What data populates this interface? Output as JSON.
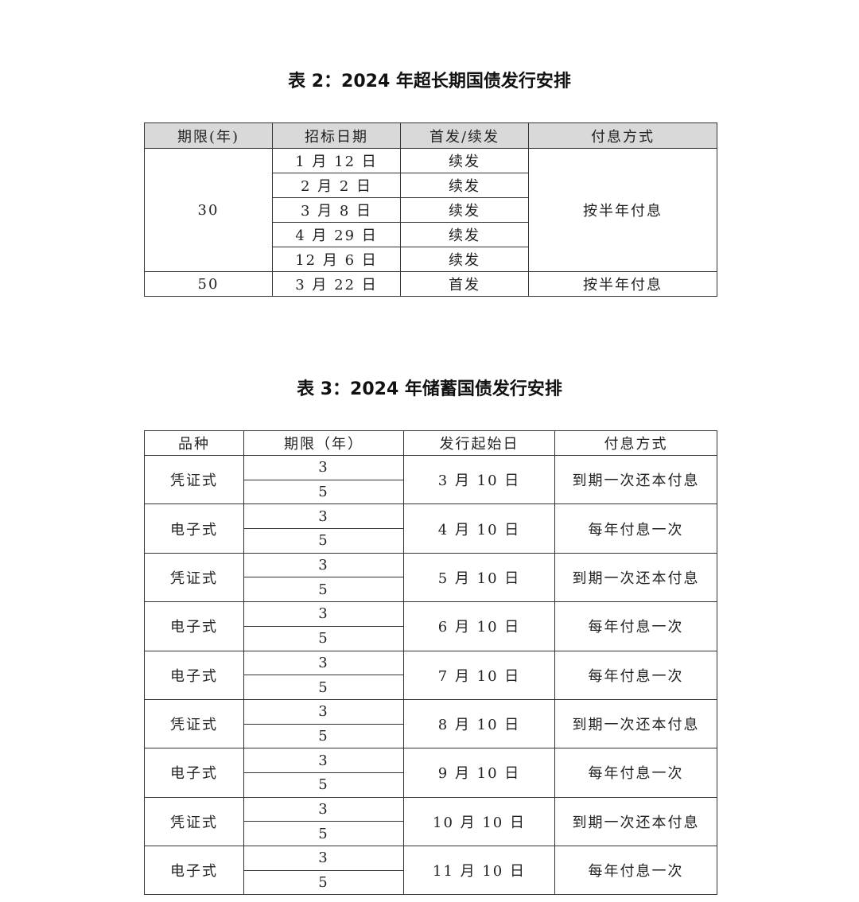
{
  "table2": {
    "title": "表 2：2024 年超长期国债发行安排",
    "headers": [
      "期限(年)",
      "招标日期",
      "首发/续发",
      "付息方式"
    ],
    "groups": [
      {
        "term": "30",
        "interest": "按半年付息",
        "rows": [
          {
            "date": "1 月 12 日",
            "type": "续发"
          },
          {
            "date": "2 月 2 日",
            "type": "续发"
          },
          {
            "date": "3 月 8 日",
            "type": "续发"
          },
          {
            "date": "4 月 29 日",
            "type": "续发"
          },
          {
            "date": "12 月 6 日",
            "type": "续发"
          }
        ]
      },
      {
        "term": "50",
        "interest": "按半年付息",
        "rows": [
          {
            "date": "3 月 22 日",
            "type": "首发"
          }
        ]
      }
    ]
  },
  "table3": {
    "title": "表 3：2024 年储蓄国债发行安排",
    "headers": [
      "品种",
      "期限（年）",
      "发行起始日",
      "付息方式"
    ],
    "rows": [
      {
        "kind": "凭证式",
        "terms": [
          "3",
          "5"
        ],
        "start": "3 月 10 日",
        "interest": "到期一次还本付息"
      },
      {
        "kind": "电子式",
        "terms": [
          "3",
          "5"
        ],
        "start": "4 月 10 日",
        "interest": "每年付息一次"
      },
      {
        "kind": "凭证式",
        "terms": [
          "3",
          "5"
        ],
        "start": "5 月 10 日",
        "interest": "到期一次还本付息"
      },
      {
        "kind": "电子式",
        "terms": [
          "3",
          "5"
        ],
        "start": "6 月 10 日",
        "interest": "每年付息一次"
      },
      {
        "kind": "电子式",
        "terms": [
          "3",
          "5"
        ],
        "start": "7 月 10 日",
        "interest": "每年付息一次"
      },
      {
        "kind": "凭证式",
        "terms": [
          "3",
          "5"
        ],
        "start": "8 月 10 日",
        "interest": "到期一次还本付息"
      },
      {
        "kind": "电子式",
        "terms": [
          "3",
          "5"
        ],
        "start": "9 月 10 日",
        "interest": "每年付息一次"
      },
      {
        "kind": "凭证式",
        "terms": [
          "3",
          "5"
        ],
        "start": "10 月 10 日",
        "interest": "到期一次还本付息"
      },
      {
        "kind": "电子式",
        "terms": [
          "3",
          "5"
        ],
        "start": "11 月 10 日",
        "interest": "每年付息一次"
      }
    ]
  }
}
